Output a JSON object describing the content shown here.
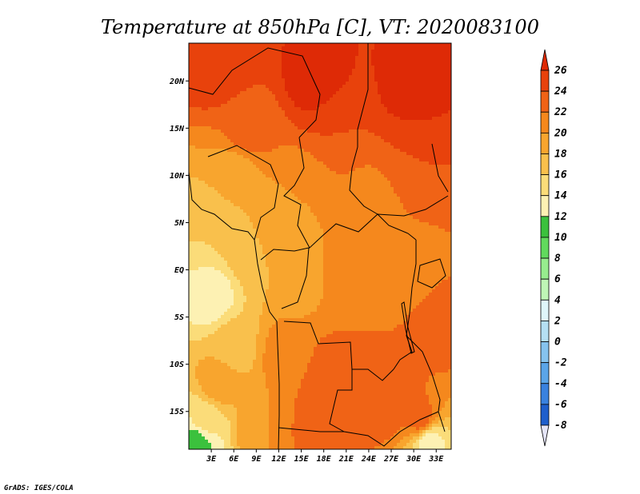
{
  "chart_data": {
    "type": "heatmap",
    "title": "Temperature at 850hPa [C], VT: 2020083100",
    "x_ticks": [
      "3E",
      "6E",
      "9E",
      "12E",
      "15E",
      "18E",
      "21E",
      "24E",
      "27E",
      "30E",
      "33E"
    ],
    "x_tick_values": [
      3,
      6,
      9,
      12,
      15,
      18,
      21,
      24,
      27,
      30,
      33
    ],
    "y_ticks": [
      "20N",
      "15N",
      "10N",
      "5N",
      "EQ",
      "5S",
      "10S",
      "15S"
    ],
    "y_tick_values": [
      20,
      15,
      10,
      5,
      0,
      -5,
      -10,
      -15
    ],
    "xlim": [
      0,
      35
    ],
    "ylim": [
      -19,
      24
    ],
    "colorbar": {
      "levels": [
        "26",
        "24",
        "22",
        "20",
        "18",
        "16",
        "14",
        "12",
        "10",
        "8",
        "6",
        "4",
        "2",
        "0",
        "-2",
        "-4",
        "-6",
        "-8"
      ],
      "colors": [
        "#de2a06",
        "#e8420c",
        "#f06316",
        "#f5881d",
        "#f8a52e",
        "#f9c04c",
        "#fbdc79",
        "#fdf1b3",
        "#3bc13d",
        "#61da5d",
        "#97ec8e",
        "#bff6b6",
        "#dff6fa",
        "#b5dff3",
        "#86c3ee",
        "#5ba5e8",
        "#3a82df",
        "#1f5fcc",
        "#103bb1",
        "#0a1a87",
        "#e5e5f7"
      ]
    },
    "field_samples": [
      {
        "lon": 4,
        "lat": 22,
        "value": 26
      },
      {
        "lon": 17,
        "lat": 20,
        "value": 27
      },
      {
        "lon": 30,
        "lat": 19,
        "value": 27
      },
      {
        "lon": 8,
        "lat": 15,
        "value": 23
      },
      {
        "lon": 20,
        "lat": 15,
        "value": 24
      },
      {
        "lon": 30,
        "lat": 12,
        "value": 24
      },
      {
        "lon": 6,
        "lat": 10,
        "value": 19
      },
      {
        "lon": 15,
        "lat": 8,
        "value": 20
      },
      {
        "lon": 24,
        "lat": 7,
        "value": 21
      },
      {
        "lon": 3,
        "lat": 5,
        "value": 16
      },
      {
        "lon": 9,
        "lat": 2,
        "value": 18
      },
      {
        "lon": 14,
        "lat": 0,
        "value": 18
      },
      {
        "lon": 21,
        "lat": 0,
        "value": 21
      },
      {
        "lon": 29,
        "lat": -1,
        "value": 21
      },
      {
        "lon": 3,
        "lat": -3,
        "value": 13
      },
      {
        "lon": 6,
        "lat": -8,
        "value": 17
      },
      {
        "lon": 13,
        "lat": -9,
        "value": 21
      },
      {
        "lon": 19,
        "lat": -12,
        "value": 24
      },
      {
        "lon": 24,
        "lat": -8,
        "value": 22
      },
      {
        "lon": 27,
        "lat": -14,
        "value": 24
      },
      {
        "lon": 31,
        "lat": -16,
        "value": 23
      },
      {
        "lon": 17,
        "lat": -17,
        "value": 23
      },
      {
        "lon": 2,
        "lat": -16,
        "value": 15
      },
      {
        "lon": 4,
        "lat": -12,
        "value": 19
      },
      {
        "lon": 33,
        "lat": -6,
        "value": 23
      },
      {
        "lon": 10,
        "lat": -17,
        "value": 20
      },
      {
        "lon": 1,
        "lat": -18,
        "value": 11
      },
      {
        "lon": 32,
        "lat": -18,
        "value": 13
      }
    ]
  },
  "credit": "GrADS: IGES/COLA"
}
